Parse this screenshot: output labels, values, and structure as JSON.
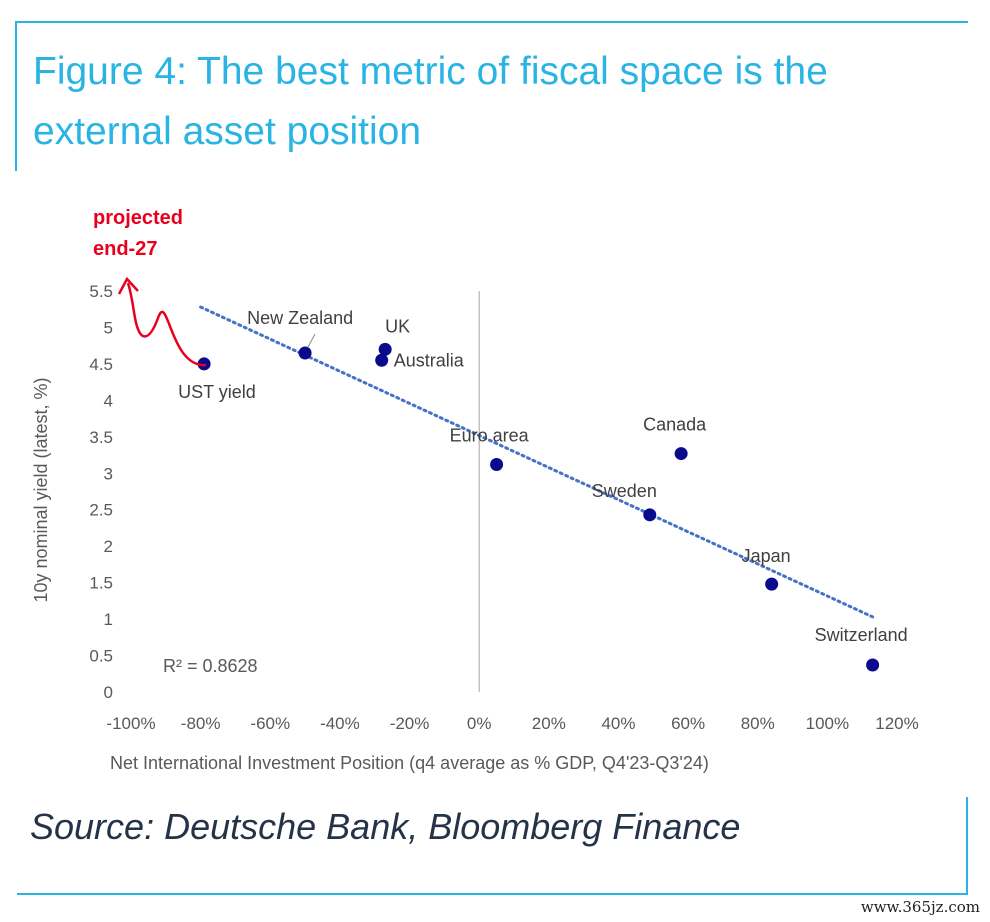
{
  "figure": {
    "title": "Figure 4: The best metric of fiscal space is the external asset position",
    "source": "Source: Deutsche Bank, Bloomberg Finance"
  },
  "watermark": "www.365jz.com",
  "colors": {
    "accent": "#29b4e4",
    "points": "#0a0a8c",
    "trendline": "#4472c4",
    "annotation": "#e8001c"
  },
  "chart_data": {
    "type": "scatter",
    "xlabel": "Net International Investment Position (q4 average as % GDP, Q4'23-Q3'24)",
    "ylabel": "10y nominal yield (latest, %)",
    "xlim": [
      -100,
      120
    ],
    "ylim": [
      0,
      5.5
    ],
    "x_ticks": [
      "-100%",
      "-80%",
      "-60%",
      "-40%",
      "-20%",
      "0%",
      "20%",
      "40%",
      "60%",
      "80%",
      "100%",
      "120%"
    ],
    "y_ticks": [
      "0",
      "0.5",
      "1",
      "1.5",
      "2",
      "2.5",
      "3",
      "3.5",
      "4",
      "4.5",
      "5",
      "5.5"
    ],
    "points": [
      {
        "label": "UST yield",
        "x": -79,
        "y": 4.5
      },
      {
        "label": "New Zealand",
        "x": -50,
        "y": 4.65
      },
      {
        "label": "UK",
        "x": -27,
        "y": 4.7
      },
      {
        "label": "Australia",
        "x": -28,
        "y": 4.55
      },
      {
        "label": "Euro area",
        "x": 5,
        "y": 3.12
      },
      {
        "label": "Canada",
        "x": 58,
        "y": 3.27
      },
      {
        "label": "Sweden",
        "x": 49,
        "y": 2.43
      },
      {
        "label": "Japan",
        "x": 84,
        "y": 1.48
      },
      {
        "label": "Switzerland",
        "x": 113,
        "y": 0.37
      }
    ],
    "trendline": {
      "x": [
        -80,
        113
      ],
      "y": [
        5.28,
        1.03
      ],
      "style": "dotted"
    },
    "annotations": {
      "r_squared": "R² = 0.8628",
      "projected": [
        "projected",
        "end-27"
      ]
    },
    "grid": false,
    "legend": "none"
  }
}
